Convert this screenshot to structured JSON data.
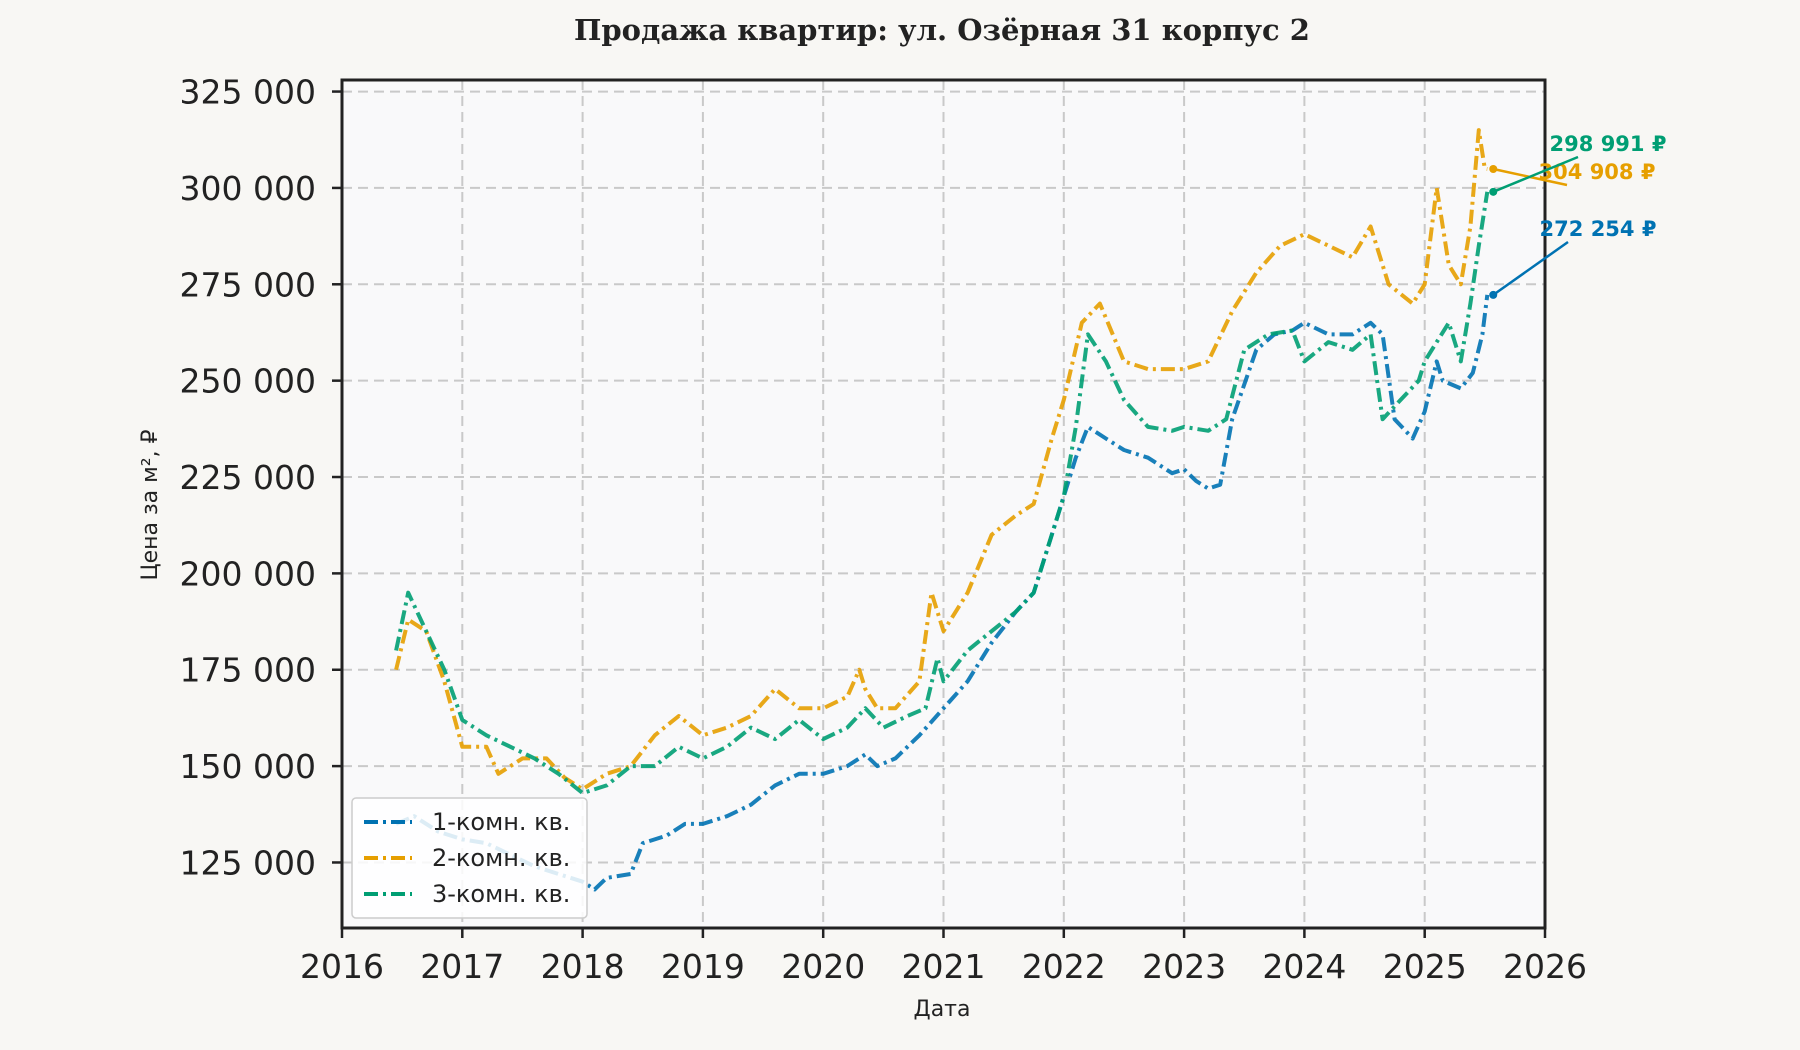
{
  "chart_data": {
    "type": "line",
    "title": "Продажа квартир: ул. Озёрная 31 корпус 2",
    "xlabel": "Дата",
    "ylabel": "Цена за м², ₽",
    "xlim": [
      2016.0,
      2026.0
    ],
    "ylim": [
      108000,
      328000
    ],
    "x_ticks": [
      2016,
      2017,
      2018,
      2019,
      2020,
      2021,
      2022,
      2023,
      2024,
      2025,
      2026
    ],
    "x_tick_labels": [
      "2016",
      "2017",
      "2018",
      "2019",
      "2020",
      "2021",
      "2022",
      "2023",
      "2024",
      "2025",
      "2026"
    ],
    "y_ticks": [
      125000,
      150000,
      175000,
      200000,
      225000,
      250000,
      275000,
      300000,
      325000
    ],
    "y_tick_labels": [
      "125 000",
      "150 000",
      "175 000",
      "200 000",
      "225 000",
      "250 000",
      "275 000",
      "300 000",
      "325 000"
    ],
    "grid": true,
    "legend_position": "lower-left",
    "series": [
      {
        "name": "1-комн. кв.",
        "color": "#0072b2",
        "dash": "dash-dot",
        "end_label": "272 254 ₽",
        "x": [
          2016.45,
          2016.6,
          2016.8,
          2017.0,
          2017.2,
          2017.4,
          2017.6,
          2017.8,
          2018.0,
          2018.1,
          2018.2,
          2018.4,
          2018.5,
          2018.7,
          2018.85,
          2019.0,
          2019.2,
          2019.4,
          2019.6,
          2019.8,
          2020.0,
          2020.2,
          2020.35,
          2020.45,
          2020.6,
          2020.8,
          2021.0,
          2021.2,
          2021.4,
          2021.6,
          2021.75,
          2021.9,
          2022.0,
          2022.1,
          2022.2,
          2022.35,
          2022.5,
          2022.7,
          2022.9,
          2023.0,
          2023.1,
          2023.2,
          2023.3,
          2023.4,
          2023.6,
          2023.75,
          2023.9,
          2024.0,
          2024.2,
          2024.4,
          2024.55,
          2024.65,
          2024.75,
          2024.9,
          2025.0,
          2025.1,
          2025.15,
          2025.3,
          2025.4,
          2025.48,
          2025.52
        ],
        "values": [
          135000,
          137000,
          133000,
          131000,
          130000,
          127000,
          124000,
          122000,
          120000,
          118000,
          121000,
          122000,
          130000,
          132000,
          135000,
          135000,
          137000,
          140000,
          145000,
          148000,
          148000,
          150000,
          153000,
          150000,
          152000,
          158000,
          165000,
          172000,
          182000,
          190000,
          195000,
          210000,
          220000,
          230000,
          238000,
          235000,
          232000,
          230000,
          226000,
          227000,
          224000,
          222000,
          223000,
          240000,
          258000,
          262000,
          263000,
          265000,
          262000,
          262000,
          265000,
          262000,
          240000,
          235000,
          242000,
          255000,
          250000,
          248000,
          252000,
          262000,
          272254
        ]
      },
      {
        "name": "2-комн. кв.",
        "color": "#e69f00",
        "dash": "dash-dot",
        "end_label": "304 908 ₽",
        "x": [
          2016.45,
          2016.55,
          2016.7,
          2016.85,
          2017.0,
          2017.2,
          2017.3,
          2017.5,
          2017.7,
          2017.85,
          2018.0,
          2018.2,
          2018.4,
          2018.6,
          2018.8,
          2019.0,
          2019.2,
          2019.4,
          2019.6,
          2019.8,
          2020.0,
          2020.2,
          2020.3,
          2020.35,
          2020.45,
          2020.6,
          2020.8,
          2020.9,
          2021.0,
          2021.2,
          2021.4,
          2021.6,
          2021.75,
          2021.9,
          2022.0,
          2022.15,
          2022.3,
          2022.5,
          2022.7,
          2022.9,
          2023.0,
          2023.2,
          2023.4,
          2023.6,
          2023.8,
          2024.0,
          2024.2,
          2024.4,
          2024.55,
          2024.7,
          2024.9,
          2025.0,
          2025.1,
          2025.2,
          2025.3,
          2025.38,
          2025.45,
          2025.5,
          2025.52
        ],
        "values": [
          175000,
          188000,
          185000,
          172000,
          155000,
          155000,
          148000,
          152000,
          152000,
          147000,
          144000,
          148000,
          150000,
          158000,
          163000,
          158000,
          160000,
          163000,
          170000,
          165000,
          165000,
          168000,
          175000,
          170000,
          165000,
          165000,
          172000,
          195000,
          185000,
          195000,
          210000,
          215000,
          218000,
          235000,
          245000,
          265000,
          270000,
          255000,
          253000,
          253000,
          253000,
          255000,
          268000,
          278000,
          285000,
          288000,
          285000,
          282000,
          290000,
          275000,
          270000,
          275000,
          300000,
          280000,
          275000,
          290000,
          315000,
          305000,
          304908
        ]
      },
      {
        "name": "3-комн. кв.",
        "color": "#009e73",
        "dash": "dash-dot",
        "end_label": "298 991 ₽",
        "x": [
          2016.45,
          2016.55,
          2016.7,
          2016.85,
          2017.0,
          2017.2,
          2017.4,
          2017.6,
          2017.8,
          2018.0,
          2018.2,
          2018.4,
          2018.6,
          2018.8,
          2019.0,
          2019.2,
          2019.4,
          2019.6,
          2019.8,
          2020.0,
          2020.2,
          2020.35,
          2020.5,
          2020.7,
          2020.85,
          2020.95,
          2021.0,
          2021.2,
          2021.4,
          2021.6,
          2021.75,
          2021.9,
          2022.0,
          2022.1,
          2022.2,
          2022.35,
          2022.5,
          2022.7,
          2022.9,
          2023.0,
          2023.2,
          2023.35,
          2023.5,
          2023.7,
          2023.9,
          2024.0,
          2024.2,
          2024.4,
          2024.55,
          2024.65,
          2024.8,
          2024.95,
          2025.0,
          2025.1,
          2025.2,
          2025.3,
          2025.38,
          2025.45,
          2025.52
        ],
        "values": [
          180000,
          195000,
          185000,
          175000,
          162000,
          158000,
          155000,
          152000,
          148000,
          143000,
          145000,
          150000,
          150000,
          155000,
          152000,
          155000,
          160000,
          157000,
          162000,
          157000,
          160000,
          165000,
          160000,
          163000,
          165000,
          178000,
          172000,
          180000,
          185000,
          190000,
          195000,
          210000,
          220000,
          238000,
          262000,
          255000,
          245000,
          238000,
          237000,
          238000,
          237000,
          240000,
          258000,
          262000,
          263000,
          255000,
          260000,
          258000,
          262000,
          240000,
          245000,
          250000,
          255000,
          260000,
          265000,
          255000,
          270000,
          285000,
          298991
        ]
      }
    ]
  }
}
